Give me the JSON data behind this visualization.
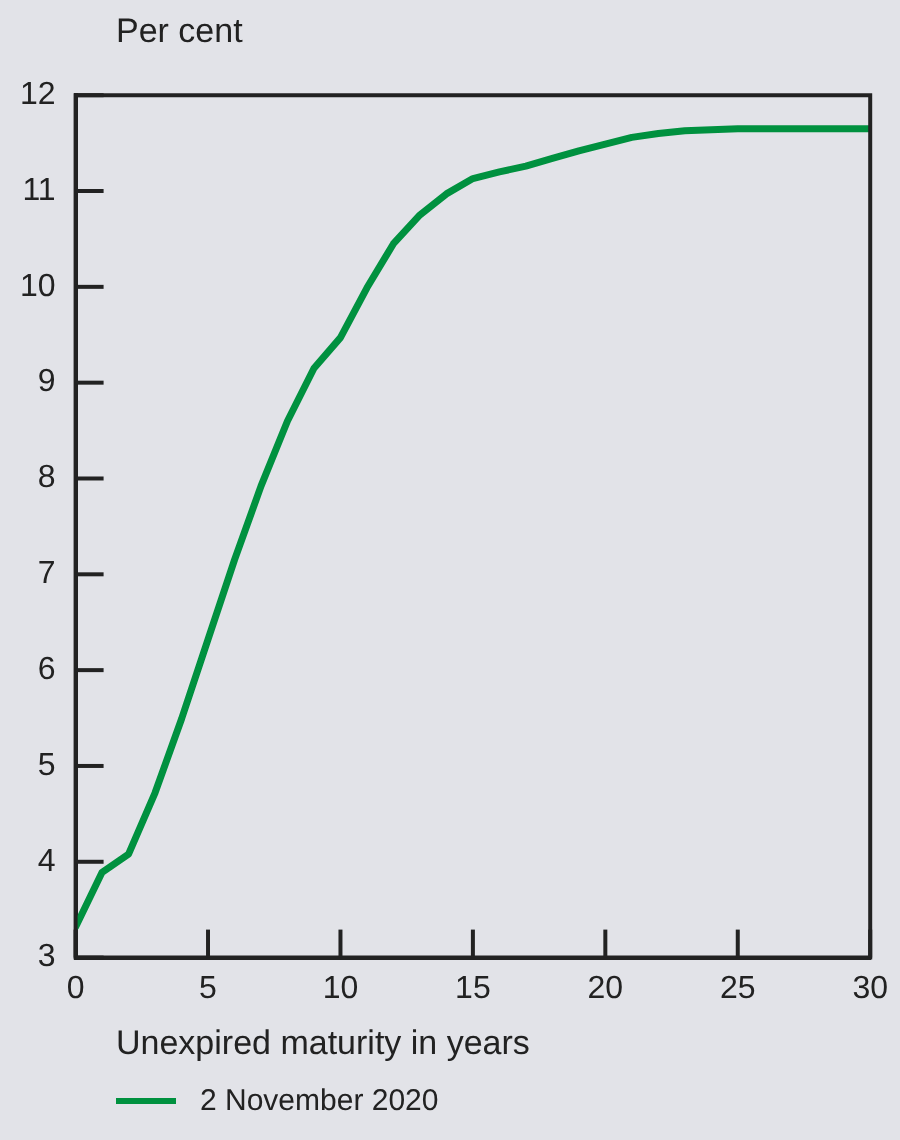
{
  "chart_data": {
    "type": "line",
    "ylabel": "Per cent",
    "xlabel": "Unexpired maturity in years",
    "x": [
      0,
      1,
      2,
      3,
      4,
      5,
      6,
      7,
      8,
      9,
      10,
      11,
      12,
      13,
      14,
      15,
      16,
      17,
      18,
      19,
      20,
      21,
      22,
      23,
      24,
      25,
      26,
      27,
      28,
      29,
      30
    ],
    "series": [
      {
        "name": "2 November 2020",
        "color": "#00913f",
        "values": [
          3.32,
          3.89,
          4.08,
          4.72,
          5.49,
          6.32,
          7.15,
          7.92,
          8.6,
          9.15,
          9.47,
          9.99,
          10.45,
          10.75,
          10.97,
          11.13,
          11.2,
          11.26,
          11.34,
          11.42,
          11.49,
          11.56,
          11.6,
          11.63,
          11.64,
          11.65,
          11.65,
          11.65,
          11.65,
          11.65,
          11.65
        ]
      }
    ],
    "xlim": [
      0,
      30
    ],
    "xticks": [
      0,
      5,
      10,
      15,
      20,
      25,
      30
    ],
    "ylim": [
      3,
      12
    ],
    "yticks": [
      3,
      4,
      5,
      6,
      7,
      8,
      9,
      10,
      11,
      12
    ],
    "grid": false,
    "legend": "bottom",
    "marker": "none",
    "line_style": "solid"
  }
}
